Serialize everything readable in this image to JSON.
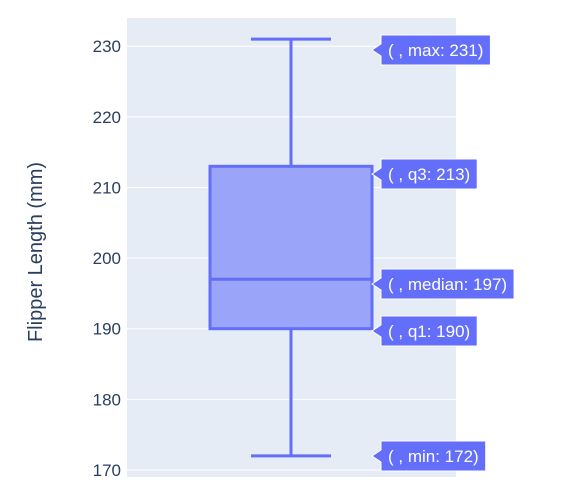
{
  "chart_data": {
    "type": "box",
    "ylabel": "Flipper Length (mm)",
    "ylim": [
      169,
      234
    ],
    "yticks": [
      170,
      180,
      190,
      200,
      210,
      220,
      230
    ],
    "grid": true,
    "box": {
      "min": 172,
      "q1": 190,
      "median": 197,
      "q3": 213,
      "max": 231
    },
    "hover_labels": [
      {
        "stat": "max",
        "value": 231,
        "text": "( , max: 231)"
      },
      {
        "stat": "q3",
        "value": 213,
        "text": "( , q3: 213)"
      },
      {
        "stat": "median",
        "value": 197,
        "text": "( , median: 197)"
      },
      {
        "stat": "q1",
        "value": 190,
        "text": "( , q1: 190)"
      },
      {
        "stat": "min",
        "value": 172,
        "text": "( , min: 172)"
      }
    ],
    "colors": {
      "plot_background": "#e5ecf6",
      "grid": "#ffffff",
      "box_line": "#636efa",
      "box_fill": "#9aa4f9",
      "hover_background": "#636efa",
      "text": "#2a3f5f"
    }
  }
}
